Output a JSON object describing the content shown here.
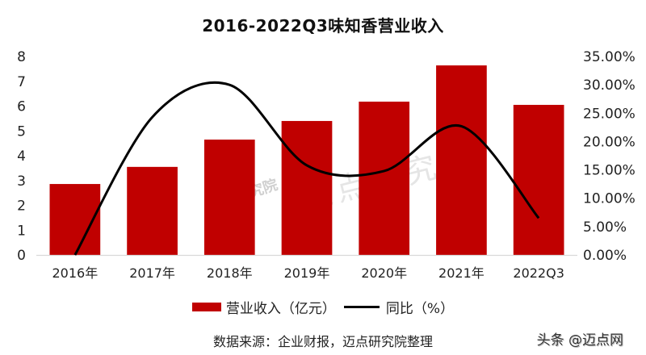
{
  "title": "2016-2022Q3味知香营业收入",
  "chart_data": {
    "type": "bar",
    "title": "2016-2022Q3味知香营业收入",
    "categories": [
      "2016年",
      "2017年",
      "2018年",
      "2019年",
      "2020年",
      "2021年",
      "2022Q3"
    ],
    "series": [
      {
        "name": "营业收入（亿元）",
        "type": "bar",
        "axis": "left",
        "color": "#C00000",
        "values": [
          2.86,
          3.55,
          4.65,
          5.4,
          6.18,
          7.64,
          6.05
        ]
      },
      {
        "name": "同比（%）",
        "type": "line",
        "axis": "right",
        "color": "#000000",
        "smooth": true,
        "values": [
          0.0,
          24.3,
          30.0,
          15.8,
          14.8,
          22.7,
          6.5
        ]
      }
    ],
    "y_left": {
      "ylim": [
        0,
        8
      ],
      "ticks": [
        "0",
        "1",
        "2",
        "3",
        "4",
        "5",
        "6",
        "7",
        "8"
      ]
    },
    "y_right": {
      "ylim": [
        0,
        35
      ],
      "ticks": [
        "0.00%",
        "5.00%",
        "10.00%",
        "15.00%",
        "20.00%",
        "25.00%",
        "30.00%",
        "35.00%"
      ]
    },
    "xlabel": "",
    "ylabel": "",
    "grid": false,
    "legend_position": "bottom"
  },
  "legend": {
    "bar_label": "营业收入（亿元）",
    "line_label": "同比（%）"
  },
  "source": "数据来源：企业财报，迈点研究院整理",
  "watermarks": {
    "small": "迈点研究院",
    "large": "迈点研究院"
  },
  "brand": "头条 @迈点网",
  "colors": {
    "bar": "#C00000",
    "line": "#000000",
    "axis": "#D9D9D9"
  }
}
